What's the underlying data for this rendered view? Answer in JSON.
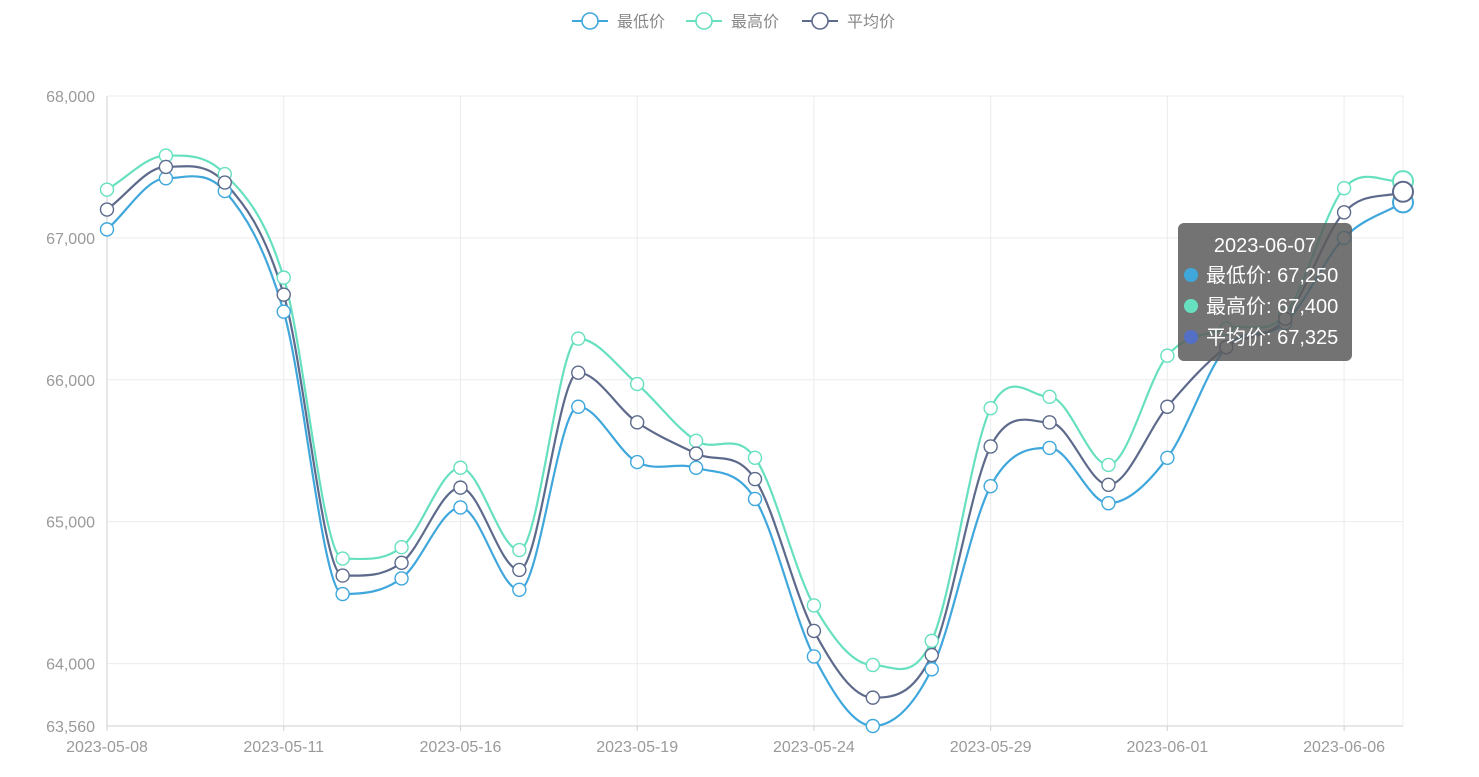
{
  "legend": {
    "items": [
      {
        "label": "最低价",
        "color": "#3fa7dc"
      },
      {
        "label": "最高价",
        "color": "#67e0c0"
      },
      {
        "label": "平均价",
        "color": "#5d6a8c"
      }
    ]
  },
  "tooltip": {
    "title": "2023-06-07",
    "rows": [
      {
        "label": "最低价: 67,250",
        "color": "#3fa7dc"
      },
      {
        "label": "最高价: 67,400",
        "color": "#67e0c0"
      },
      {
        "label": "平均价: 67,325",
        "color": "#5470c6"
      }
    ]
  },
  "chart_data": {
    "type": "line",
    "smooth": true,
    "ylim": [
      63560,
      68000
    ],
    "ytick_values": [
      63560,
      64000,
      65000,
      66000,
      67000,
      68000
    ],
    "ytick_labels": [
      "63,560",
      "64,000",
      "65,000",
      "66,000",
      "67,000",
      "68,000"
    ],
    "x": [
      "2023-05-08",
      "2023-05-09",
      "2023-05-10",
      "2023-05-11",
      "2023-05-12",
      "2023-05-15",
      "2023-05-16",
      "2023-05-17",
      "2023-05-18",
      "2023-05-19",
      "2023-05-22",
      "2023-05-23",
      "2023-05-24",
      "2023-05-25",
      "2023-05-26",
      "2023-05-29",
      "2023-05-30",
      "2023-05-31",
      "2023-06-01",
      "2023-06-02",
      "2023-06-05",
      "2023-06-06",
      "2023-06-07"
    ],
    "xtick_labels": [
      "2023-05-08",
      "2023-05-11",
      "2023-05-16",
      "2023-05-19",
      "2023-05-24",
      "2023-05-29",
      "2023-06-01",
      "2023-06-06"
    ],
    "xtick_indices": [
      0,
      3,
      6,
      9,
      12,
      15,
      18,
      21
    ],
    "highlight_index": 22,
    "series": [
      {
        "name": "最低价",
        "color": "#3fa7dc",
        "values": [
          67060,
          67420,
          67330,
          66480,
          64490,
          64600,
          65100,
          64520,
          65810,
          65420,
          65380,
          65160,
          64050,
          63560,
          63960,
          65250,
          65520,
          65130,
          65450,
          66230,
          66400,
          67000,
          67250
        ]
      },
      {
        "name": "最高价",
        "color": "#67e0c0",
        "values": [
          67340,
          67580,
          67450,
          66720,
          64740,
          64820,
          65380,
          64800,
          66290,
          65970,
          65570,
          65450,
          64410,
          63990,
          64160,
          65800,
          65880,
          65400,
          66170,
          66360,
          66460,
          67350,
          67400
        ]
      },
      {
        "name": "平均价",
        "color": "#5d6a8c",
        "values": [
          67200,
          67500,
          67390,
          66600,
          64620,
          64710,
          65240,
          64660,
          66050,
          65700,
          65480,
          65300,
          64230,
          63760,
          64060,
          65530,
          65700,
          65260,
          65810,
          66230,
          66430,
          67180,
          67325
        ]
      }
    ]
  }
}
